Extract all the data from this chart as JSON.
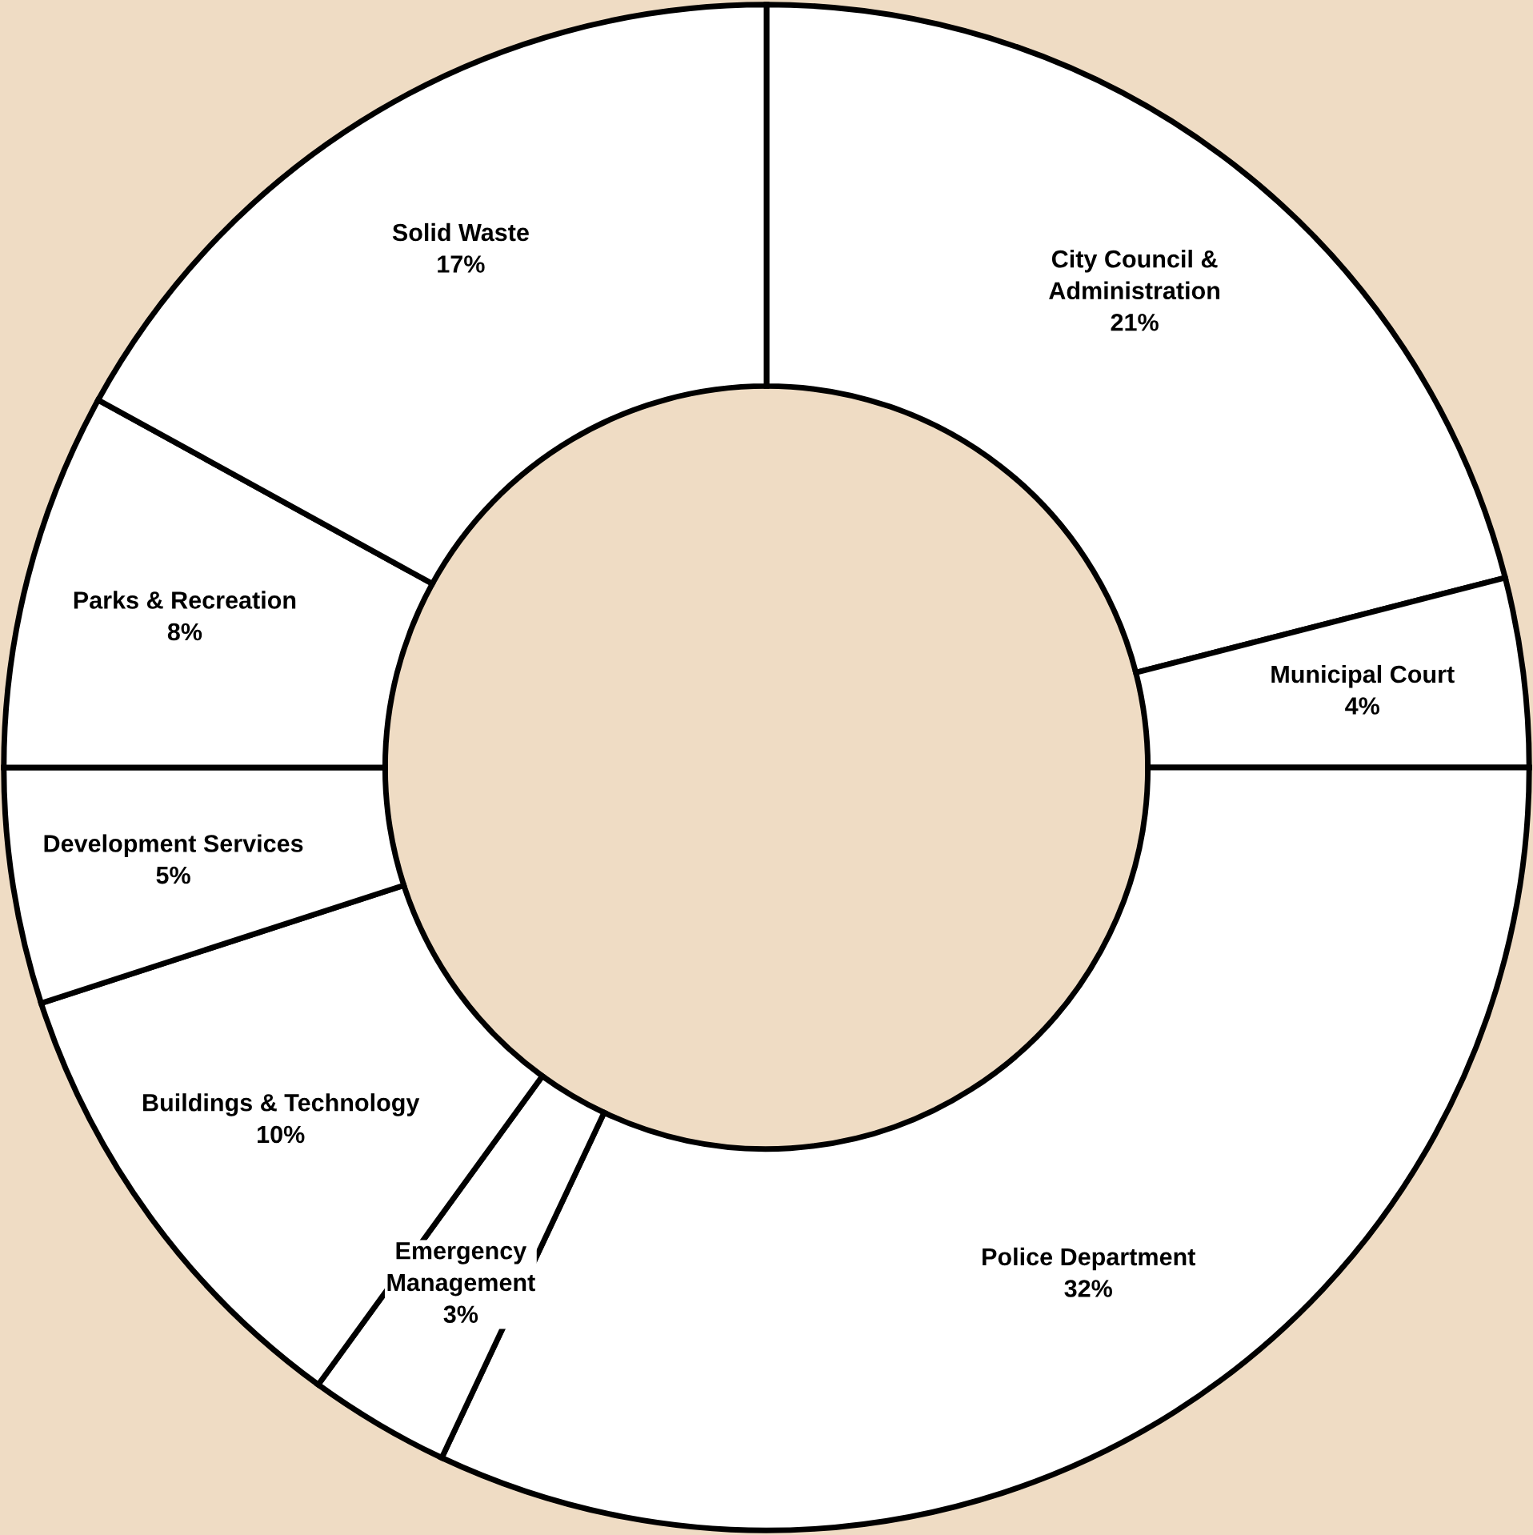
{
  "chart_data": {
    "type": "donut",
    "categories": [
      "City Council &\nAdministration",
      "Municipal Court",
      "Police Department",
      "Emergency\nManagement",
      "Buildings & Technology",
      "Development Services",
      "Parks & Recreation",
      "Solid Waste"
    ],
    "values": [
      21,
      4,
      32,
      3,
      10,
      5,
      8,
      17
    ],
    "value_labels": [
      "21%",
      "4%",
      "32%",
      "3%",
      "10%",
      "5%",
      "8%",
      "17%"
    ],
    "colors": [
      "#ffffff",
      "#ffffff",
      "#ffffff",
      "#ffffff",
      "#ffffff",
      "#ffffff",
      "#ffffff",
      "#ffffff"
    ],
    "legend": false
  }
}
